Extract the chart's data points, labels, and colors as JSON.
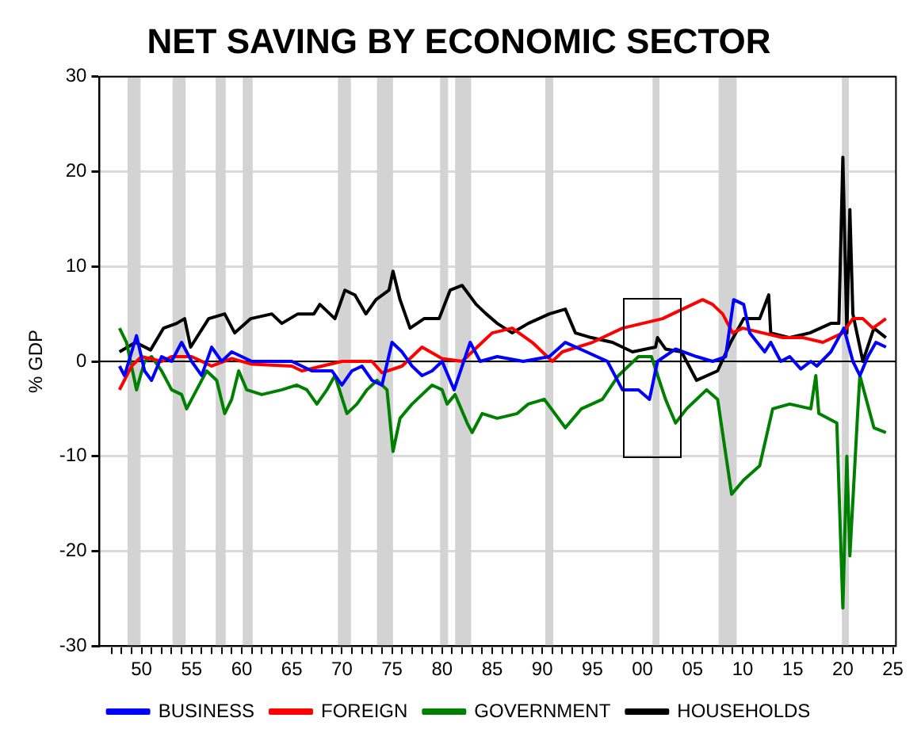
{
  "chart_data": {
    "type": "line",
    "title": "NET SAVING BY ECONOMIC SECTOR",
    "ylabel": "% GDP",
    "xlim": [
      1945.8,
      2025.3
    ],
    "ylim": [
      -30,
      30
    ],
    "yticks": [
      -30,
      -20,
      -10,
      0,
      10,
      20,
      30
    ],
    "xticks": [
      {
        "value": 1947,
        "label": null
      },
      {
        "value": 1948,
        "label": null
      },
      {
        "value": 1949,
        "label": null
      },
      {
        "value": 1950,
        "label": "50"
      },
      {
        "value": 1951,
        "label": null
      },
      {
        "value": 1952,
        "label": null
      },
      {
        "value": 1953,
        "label": null
      },
      {
        "value": 1954,
        "label": null
      },
      {
        "value": 1955,
        "label": "55"
      },
      {
        "value": 1956,
        "label": null
      },
      {
        "value": 1957,
        "label": null
      },
      {
        "value": 1958,
        "label": null
      },
      {
        "value": 1959,
        "label": null
      },
      {
        "value": 1960,
        "label": "60"
      },
      {
        "value": 1961,
        "label": null
      },
      {
        "value": 1962,
        "label": null
      },
      {
        "value": 1963,
        "label": null
      },
      {
        "value": 1964,
        "label": null
      },
      {
        "value": 1965,
        "label": "65"
      },
      {
        "value": 1966,
        "label": null
      },
      {
        "value": 1967,
        "label": null
      },
      {
        "value": 1968,
        "label": null
      },
      {
        "value": 1969,
        "label": null
      },
      {
        "value": 1970,
        "label": "70"
      },
      {
        "value": 1971,
        "label": null
      },
      {
        "value": 1972,
        "label": null
      },
      {
        "value": 1973,
        "label": null
      },
      {
        "value": 1974,
        "label": null
      },
      {
        "value": 1975,
        "label": "75"
      },
      {
        "value": 1976,
        "label": null
      },
      {
        "value": 1977,
        "label": null
      },
      {
        "value": 1978,
        "label": null
      },
      {
        "value": 1979,
        "label": null
      },
      {
        "value": 1980,
        "label": "80"
      },
      {
        "value": 1981,
        "label": null
      },
      {
        "value": 1982,
        "label": null
      },
      {
        "value": 1983,
        "label": null
      },
      {
        "value": 1984,
        "label": null
      },
      {
        "value": 1985,
        "label": "85"
      },
      {
        "value": 1986,
        "label": null
      },
      {
        "value": 1987,
        "label": null
      },
      {
        "value": 1988,
        "label": null
      },
      {
        "value": 1989,
        "label": null
      },
      {
        "value": 1990,
        "label": "90"
      },
      {
        "value": 1991,
        "label": null
      },
      {
        "value": 1992,
        "label": null
      },
      {
        "value": 1993,
        "label": null
      },
      {
        "value": 1994,
        "label": null
      },
      {
        "value": 1995,
        "label": "95"
      },
      {
        "value": 1996,
        "label": null
      },
      {
        "value": 1997,
        "label": null
      },
      {
        "value": 1998,
        "label": null
      },
      {
        "value": 1999,
        "label": null
      },
      {
        "value": 2000,
        "label": "00"
      },
      {
        "value": 2001,
        "label": null
      },
      {
        "value": 2002,
        "label": null
      },
      {
        "value": 2003,
        "label": null
      },
      {
        "value": 2004,
        "label": null
      },
      {
        "value": 2005,
        "label": "05"
      },
      {
        "value": 2006,
        "label": null
      },
      {
        "value": 2007,
        "label": null
      },
      {
        "value": 2008,
        "label": null
      },
      {
        "value": 2009,
        "label": null
      },
      {
        "value": 2010,
        "label": "10"
      },
      {
        "value": 2011,
        "label": null
      },
      {
        "value": 2012,
        "label": null
      },
      {
        "value": 2013,
        "label": null
      },
      {
        "value": 2014,
        "label": null
      },
      {
        "value": 2015,
        "label": "15"
      },
      {
        "value": 2016,
        "label": null
      },
      {
        "value": 2017,
        "label": null
      },
      {
        "value": 2018,
        "label": null
      },
      {
        "value": 2019,
        "label": null
      },
      {
        "value": 2020,
        "label": "20"
      },
      {
        "value": 2021,
        "label": null
      },
      {
        "value": 2022,
        "label": null
      },
      {
        "value": 2023,
        "label": null
      },
      {
        "value": 2024,
        "label": null
      },
      {
        "value": 2025,
        "label": "25"
      }
    ],
    "grid": "y",
    "legend": "bottom",
    "line_style": "solid",
    "marker": "none",
    "ref_lines": [
      {
        "axis": "y",
        "value": 0,
        "color": "#000000"
      }
    ],
    "bands": [
      {
        "axis": "x",
        "from": 1948.6,
        "to": 1949.9,
        "color": "#d3d3d3"
      },
      {
        "axis": "x",
        "from": 1953.1,
        "to": 1954.4,
        "color": "#d3d3d3"
      },
      {
        "axis": "x",
        "from": 1957.4,
        "to": 1958.4,
        "color": "#d3d3d3"
      },
      {
        "axis": "x",
        "from": 1960.1,
        "to": 1961.1,
        "color": "#d3d3d3"
      },
      {
        "axis": "x",
        "from": 1969.6,
        "to": 1970.9,
        "color": "#d3d3d3"
      },
      {
        "axis": "x",
        "from": 1973.5,
        "to": 1975.1,
        "color": "#d3d3d3"
      },
      {
        "axis": "x",
        "from": 1979.8,
        "to": 1980.6,
        "color": "#d3d3d3"
      },
      {
        "axis": "x",
        "from": 1981.3,
        "to": 1982.9,
        "color": "#d3d3d3"
      },
      {
        "axis": "x",
        "from": 1990.3,
        "to": 1991.1,
        "color": "#d3d3d3"
      },
      {
        "axis": "x",
        "from": 2001.0,
        "to": 2001.7,
        "color": "#d3d3d3"
      },
      {
        "axis": "x",
        "from": 2007.6,
        "to": 2009.4,
        "color": "#d3d3d3"
      },
      {
        "axis": "x",
        "from": 2019.9,
        "to": 2020.6,
        "color": "#d3d3d3"
      }
    ],
    "series": [
      {
        "name": "BUSINESS",
        "color": "#0000ff",
        "x": [
          1947.8,
          1948.3,
          1949.5,
          1950.3,
          1951,
          1952,
          1953,
          1954,
          1955,
          1956,
          1957,
          1958,
          1959,
          1960,
          1961,
          1963,
          1965,
          1967,
          1969,
          1970,
          1971,
          1972,
          1973,
          1974,
          1975,
          1976,
          1977,
          1978,
          1979,
          1980,
          1981.2,
          1982.8,
          1983.8,
          1985.5,
          1988.1,
          1990.7,
          1992.3,
          1994.4,
          1996.5,
          1998,
          1999.6,
          2000.7,
          2001.5,
          2003.3,
          2005.4,
          2007,
          2008.3,
          2009.1,
          2010.1,
          2010.7,
          2012.2,
          2012.8,
          2013.8,
          2014.7,
          2015.8,
          2016.8,
          2017.4,
          2018.8,
          2020.1,
          2021,
          2021.7,
          2022.5,
          2023.3,
          2024.3
        ],
        "values": [
          -0.5,
          -1.5,
          2.7,
          -1,
          -2,
          0.5,
          0,
          2,
          0,
          -1.5,
          1.5,
          0,
          1,
          0.5,
          0,
          0,
          0,
          -1,
          -1,
          -2.5,
          -1,
          -0.5,
          -2,
          -2.5,
          2,
          1,
          -0.5,
          -1.5,
          -1,
          0,
          -3,
          2,
          0,
          0.5,
          0,
          0.5,
          2,
          1,
          0,
          -3,
          -3,
          -4,
          0,
          1.3,
          0.5,
          0,
          0.5,
          6.5,
          6,
          3,
          1,
          2,
          0,
          0.5,
          -0.8,
          0,
          -0.5,
          1,
          3.5,
          0,
          -1.5,
          0.5,
          2,
          1.5
        ]
      },
      {
        "name": "FOREIGN",
        "color": "#ff0000",
        "x": [
          1947.8,
          1949,
          1950,
          1952,
          1953,
          1955,
          1957,
          1959,
          1961,
          1965,
          1966,
          1970,
          1973,
          1974,
          1976,
          1978,
          1980,
          1982,
          1983.5,
          1985,
          1987,
          1989,
          1991,
          1992,
          1995,
          1998,
          2000,
          2002,
          2004,
          2006,
          2007,
          2008,
          2009,
          2010,
          2012,
          2014,
          2016,
          2018,
          2020,
          2021,
          2022,
          2023,
          2024.3
        ],
        "values": [
          -3,
          -0.5,
          0.5,
          0,
          0.5,
          0.5,
          -0.5,
          0.3,
          -0.3,
          -0.5,
          -1,
          0,
          0,
          -1.2,
          -0.5,
          1.5,
          0.3,
          0,
          1.5,
          3,
          3.5,
          2,
          0,
          1,
          2,
          3.5,
          4,
          4.5,
          5.5,
          6.5,
          6,
          5,
          3,
          3.5,
          3,
          2.5,
          2.5,
          2,
          3,
          4.5,
          4.5,
          3.5,
          4.5
        ]
      },
      {
        "name": "GOVERNMENT",
        "color": "#008000",
        "x": [
          1947.8,
          1948.5,
          1949.5,
          1950.3,
          1951,
          1952,
          1953,
          1954,
          1954.5,
          1955.5,
          1956.5,
          1957.5,
          1958.3,
          1959,
          1959.7,
          1960.5,
          1962,
          1964,
          1965.5,
          1966.5,
          1967.5,
          1968.5,
          1969.3,
          1970.5,
          1971.5,
          1972.5,
          1973.5,
          1974.5,
          1975.1,
          1975.8,
          1977,
          1978,
          1979,
          1980,
          1980.5,
          1981.3,
          1982.5,
          1983,
          1984,
          1985.5,
          1987.5,
          1988.6,
          1990.2,
          1992.3,
          1993.9,
          1996,
          1997.6,
          1999.6,
          2000.9,
          2002.3,
          2003.3,
          2004.4,
          2006.4,
          2007.5,
          2008.9,
          2010.1,
          2011.7,
          2013,
          2014.7,
          2016.8,
          2017.3,
          2017.6,
          2019.4,
          2020,
          2020.4,
          2020.7,
          2021.5,
          2021.7,
          2023.1,
          2024.3
        ],
        "values": [
          3.5,
          2,
          -3,
          0,
          0.5,
          -1,
          -3,
          -3.5,
          -5,
          -3,
          -1,
          -2,
          -5.5,
          -4,
          -1,
          -3,
          -3.5,
          -3,
          -2.5,
          -3,
          -4.5,
          -3,
          -1.5,
          -5.5,
          -4.5,
          -3,
          -2,
          -3,
          -9.5,
          -6,
          -4.5,
          -3.5,
          -2.5,
          -3,
          -4.5,
          -3.5,
          -6.5,
          -7.5,
          -5.5,
          -6,
          -5.5,
          -4.5,
          -4,
          -7,
          -5,
          -4,
          -1.5,
          0.5,
          0.5,
          -4,
          -6.5,
          -5,
          -3,
          -4,
          -14,
          -12.5,
          -11,
          -5,
          -4.5,
          -5,
          -1.5,
          -5.5,
          -6.5,
          -26,
          -10,
          -20.5,
          -5,
          -1.5,
          -7,
          -7.5
        ]
      },
      {
        "name": "HOUSEHOLDS",
        "color": "#000000",
        "x": [
          1947.8,
          1949.4,
          1950.9,
          1952.2,
          1953.5,
          1954.3,
          1954.9,
          1956.7,
          1958.3,
          1959.3,
          1960.9,
          1963,
          1964,
          1965.6,
          1967.2,
          1967.8,
          1969.3,
          1970.3,
          1971.3,
          1972.4,
          1973.4,
          1974.7,
          1975.1,
          1975.8,
          1976.8,
          1978.2,
          1979.7,
          1980.8,
          1982,
          1983.4,
          1984.4,
          1985.5,
          1987,
          1988.6,
          1990.7,
          1992.3,
          1993.3,
          1994.9,
          1997,
          1999,
          2001.3,
          2001.5,
          2002.3,
          2003.9,
          2005.4,
          2007.5,
          2008.8,
          2010.1,
          2011.7,
          2012.6,
          2012.8,
          2014.7,
          2016.7,
          2018.8,
          2019.6,
          2020,
          2020.4,
          2020.7,
          2021,
          2022,
          2023.1,
          2024.3
        ],
        "values": [
          1,
          2,
          1.2,
          3.5,
          4,
          4.5,
          1.5,
          4.5,
          5,
          3,
          4.5,
          5,
          4,
          5,
          5,
          6,
          4.5,
          7.5,
          7,
          5,
          6.5,
          7.5,
          9.5,
          6.5,
          3.5,
          4.5,
          4.5,
          7.5,
          8,
          6,
          5,
          4,
          3,
          4,
          5,
          5.5,
          3,
          2.5,
          2,
          1,
          1.5,
          2.5,
          1.3,
          1,
          -2,
          -1,
          2,
          4.5,
          4.5,
          7,
          3,
          2.5,
          3,
          4,
          4,
          21.5,
          3,
          16,
          5,
          0,
          3.5,
          2.5
        ]
      }
    ]
  }
}
